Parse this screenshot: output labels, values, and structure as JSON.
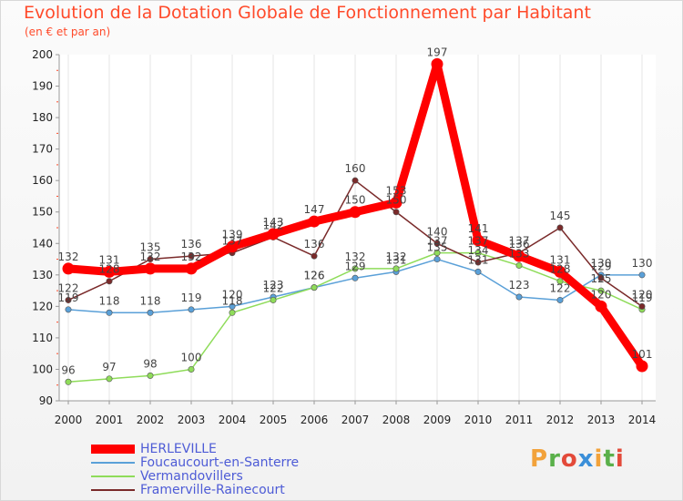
{
  "header": {
    "title": "Evolution de la Dotation Globale de Fonctionnement par Habitant",
    "subtitle": "(en € et par an)"
  },
  "logo": {
    "text": "Proxiti",
    "colors": [
      "#f2a23a",
      "#5ab04a",
      "#e34a3a",
      "#3a8fd9",
      "#f2a23a",
      "#5ab04a",
      "#e34a3a"
    ]
  },
  "chart_data": {
    "type": "line",
    "x": [
      "2000",
      "2001",
      "2002",
      "2003",
      "2004",
      "2005",
      "2006",
      "2007",
      "2008",
      "2009",
      "2010",
      "2011",
      "2012",
      "2013",
      "2014"
    ],
    "ylim": [
      90,
      200
    ],
    "yticks": [
      90,
      100,
      110,
      120,
      130,
      140,
      150,
      160,
      170,
      180,
      190,
      200
    ],
    "grid": "vertical",
    "legend_position": "bottom-left",
    "series": [
      {
        "name": "HERLEVILLE",
        "color": "#ff0000",
        "values": [
          132,
          131,
          132,
          132,
          139,
          143,
          147,
          150,
          153,
          197,
          141,
          136,
          131,
          120,
          101
        ]
      },
      {
        "name": "Foucaucourt-en-Santerre",
        "color": "#5aa0d8",
        "values": [
          119,
          118,
          118,
          119,
          120,
          123,
          126,
          129,
          131,
          135,
          131,
          123,
          122,
          130,
          130
        ]
      },
      {
        "name": "Vermandovillers",
        "color": "#8fdc5a",
        "values": [
          96,
          97,
          98,
          100,
          118,
          122,
          126,
          132,
          132,
          137,
          137,
          133,
          128,
          125,
          119
        ]
      },
      {
        "name": "Framerville-Rainecourt",
        "color": "#7a2a2a",
        "values": [
          122,
          128,
          135,
          136,
          137,
          142,
          136,
          160,
          150,
          140,
          134,
          137,
          145,
          129,
          120
        ]
      }
    ]
  }
}
